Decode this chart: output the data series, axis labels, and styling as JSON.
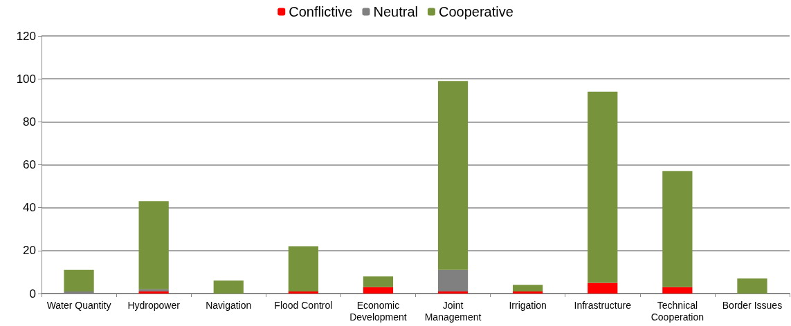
{
  "chart_data": {
    "type": "bar",
    "stacked": true,
    "categories": [
      "Water Quantity",
      "Hydropower",
      "Navigation",
      "Flood Control",
      "Economic\nDevelopment",
      "Joint\nManagement",
      "Irrigation",
      "Infrastructure",
      "Technical\nCooperation",
      "Border Issues"
    ],
    "series": [
      {
        "name": "Conflictive",
        "color": "#ff0000",
        "values": [
          0,
          1,
          0,
          1,
          3,
          1,
          1,
          5,
          3,
          0
        ]
      },
      {
        "name": "Neutral",
        "color": "#808080",
        "values": [
          1,
          1,
          0,
          0,
          0,
          10,
          0,
          0,
          0,
          0
        ]
      },
      {
        "name": "Cooperative",
        "color": "#77933c",
        "values": [
          10,
          41,
          6,
          21,
          5,
          88,
          3,
          89,
          54,
          7
        ]
      }
    ],
    "ylim": [
      0,
      120
    ],
    "yticks": [
      0,
      20,
      40,
      60,
      80,
      100,
      120
    ],
    "grid": "y",
    "legend": "top"
  }
}
